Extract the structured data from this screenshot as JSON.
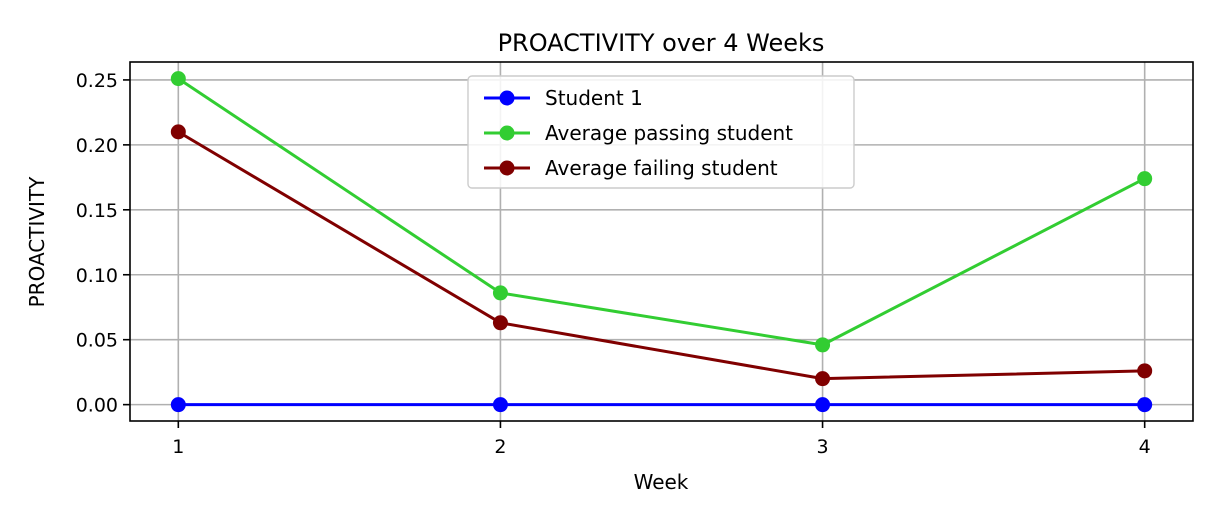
{
  "chart_data": {
    "type": "line",
    "title": "PROACTIVITY over 4 Weeks",
    "xlabel": "Week",
    "ylabel": "PROACTIVITY",
    "x": [
      1,
      2,
      3,
      4
    ],
    "xticks": [
      "1",
      "2",
      "3",
      "4"
    ],
    "xlim": [
      0.85,
      4.15
    ],
    "yticks": [
      "0.00",
      "0.05",
      "0.10",
      "0.15",
      "0.20",
      "0.25"
    ],
    "ylim": [
      -0.0126,
      0.2638
    ],
    "grid": true,
    "legend_position": "top-center",
    "series": [
      {
        "name": "Student 1",
        "color": "#0000ff",
        "values": [
          0.0,
          0.0,
          0.0,
          0.0
        ]
      },
      {
        "name": "Average passing student",
        "color": "#32cd32",
        "values": [
          0.251,
          0.086,
          0.046,
          0.174
        ]
      },
      {
        "name": "Average failing student",
        "color": "#800000",
        "values": [
          0.21,
          0.063,
          0.02,
          0.026
        ]
      }
    ]
  }
}
